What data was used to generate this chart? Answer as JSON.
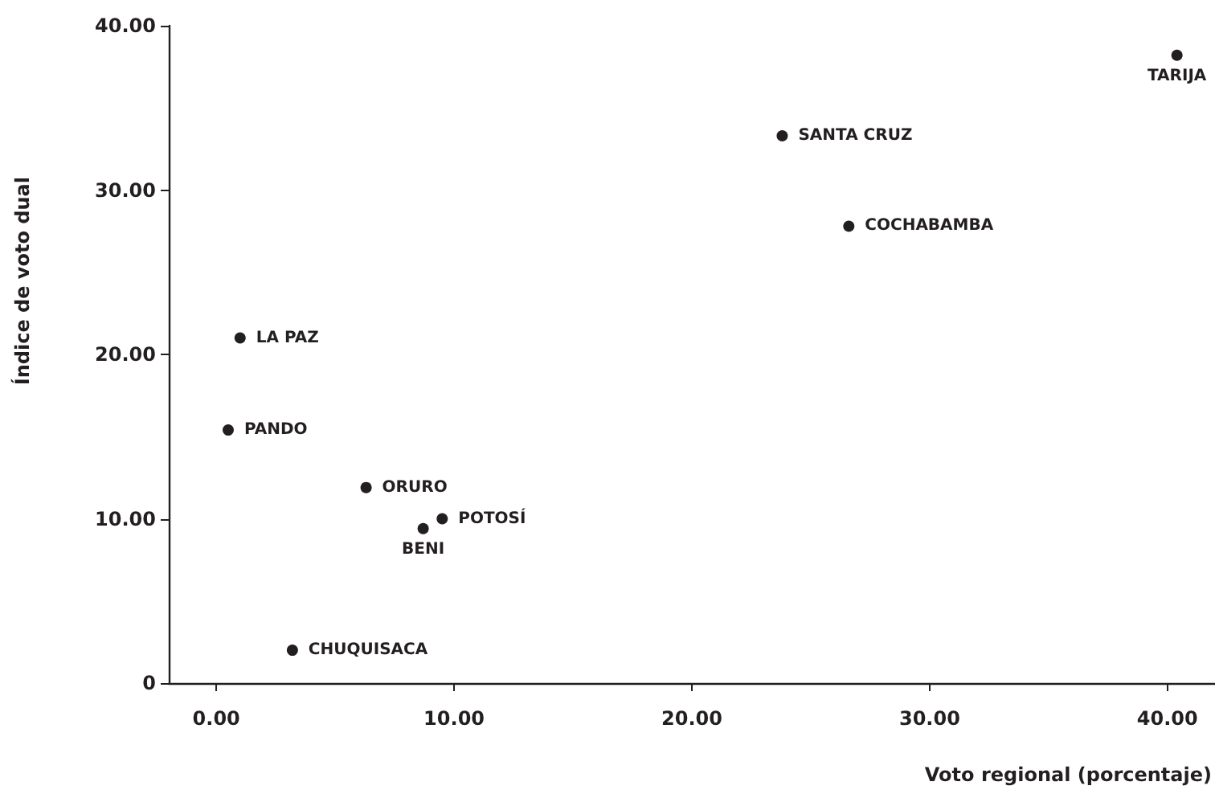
{
  "chart_data": {
    "type": "scatter",
    "xlabel": "Voto regional (porcentaje)",
    "ylabel": "Índice de voto dual",
    "x": [
      1.0,
      0.5,
      6.3,
      8.7,
      9.5,
      3.2,
      23.8,
      26.6,
      40.4
    ],
    "values": [
      21.0,
      15.4,
      11.9,
      9.4,
      10.0,
      2.0,
      33.3,
      27.8,
      38.2
    ],
    "color": "#231f20",
    "marker": "circle",
    "grid": false,
    "xlim": [
      -2,
      42
    ],
    "ylim": [
      0,
      40
    ],
    "xticks": [
      {
        "value": 0,
        "label": "0.00"
      },
      {
        "value": 10,
        "label": "10.00"
      },
      {
        "value": 20,
        "label": "20.00"
      },
      {
        "value": 30,
        "label": "30.00"
      },
      {
        "value": 40,
        "label": "40.00"
      }
    ],
    "yticks": [
      {
        "value": 0,
        "label": "0"
      },
      {
        "value": 10,
        "label": "10.00"
      },
      {
        "value": 20,
        "label": "20.00"
      },
      {
        "value": 30,
        "label": "30.00"
      },
      {
        "value": 40,
        "label": "40.00"
      }
    ],
    "annotations": [
      {
        "text": "LA PAZ",
        "x": 1.0,
        "y": 21.0
      },
      {
        "text": "PANDO",
        "x": 0.5,
        "y": 15.4
      },
      {
        "text": "ORURO",
        "x": 6.3,
        "y": 11.9
      },
      {
        "text": "BENI",
        "x": 8.7,
        "y": 9.4
      },
      {
        "text": "POTOSÍ",
        "x": 9.5,
        "y": 10.0
      },
      {
        "text": "CHUQUISACA",
        "x": 3.2,
        "y": 2.0
      },
      {
        "text": "SANTA CRUZ",
        "x": 23.8,
        "y": 33.3
      },
      {
        "text": "COCHABAMBA",
        "x": 26.6,
        "y": 27.8
      },
      {
        "text": "TARIJA",
        "x": 40.4,
        "y": 38.2
      }
    ]
  }
}
